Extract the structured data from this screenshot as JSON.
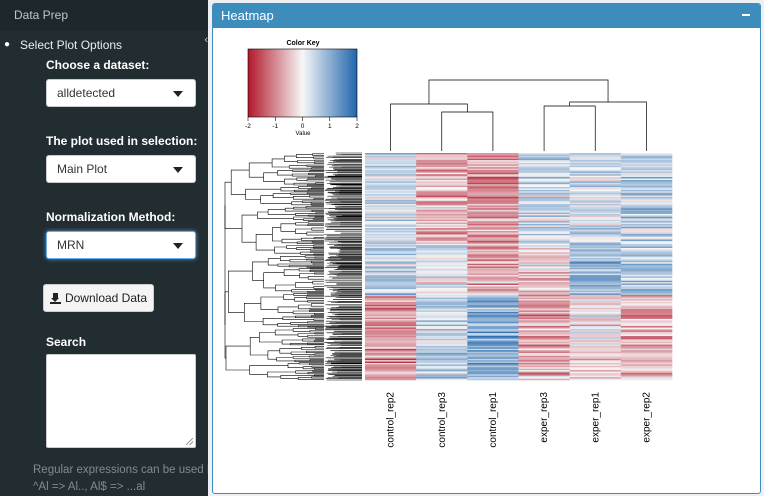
{
  "sidebar": {
    "header": "Data Prep",
    "menu_item": "Select Plot Options",
    "dataset_label": "Choose a dataset:",
    "dataset_value": "alldetected",
    "plot_label": "The plot used in selection:",
    "plot_value": "Main Plot",
    "norm_label": "Normalization Method:",
    "norm_value": "MRN",
    "download_label": "Download Data",
    "search_label": "Search",
    "search_value": "",
    "help_line1": "Regular expressions can be used Ex:",
    "help_line2": "^Al => Al.., Al$ => ...al"
  },
  "panel": {
    "title": "Heatmap"
  },
  "chart_data": {
    "type": "heatmap",
    "color_key": {
      "title": "Color Key",
      "xlabel": "Value",
      "ticks": [
        "-2",
        "-1",
        "0",
        "1",
        "2"
      ],
      "range": [
        -2,
        2
      ],
      "low_color": "#b2182b",
      "mid_color": "#f7f7f7",
      "high_color": "#2166ac"
    },
    "columns": [
      "control_rep2",
      "control_rep3",
      "control_rep1",
      "exper_rep3",
      "exper_rep1",
      "exper_rep2"
    ],
    "column_tree": "((control_rep2,(control_rep3,control_rep1)),((exper_rep3,exper_rep1),exper_rep2))",
    "row_dendrogram": true,
    "column_dendrogram": true
  }
}
